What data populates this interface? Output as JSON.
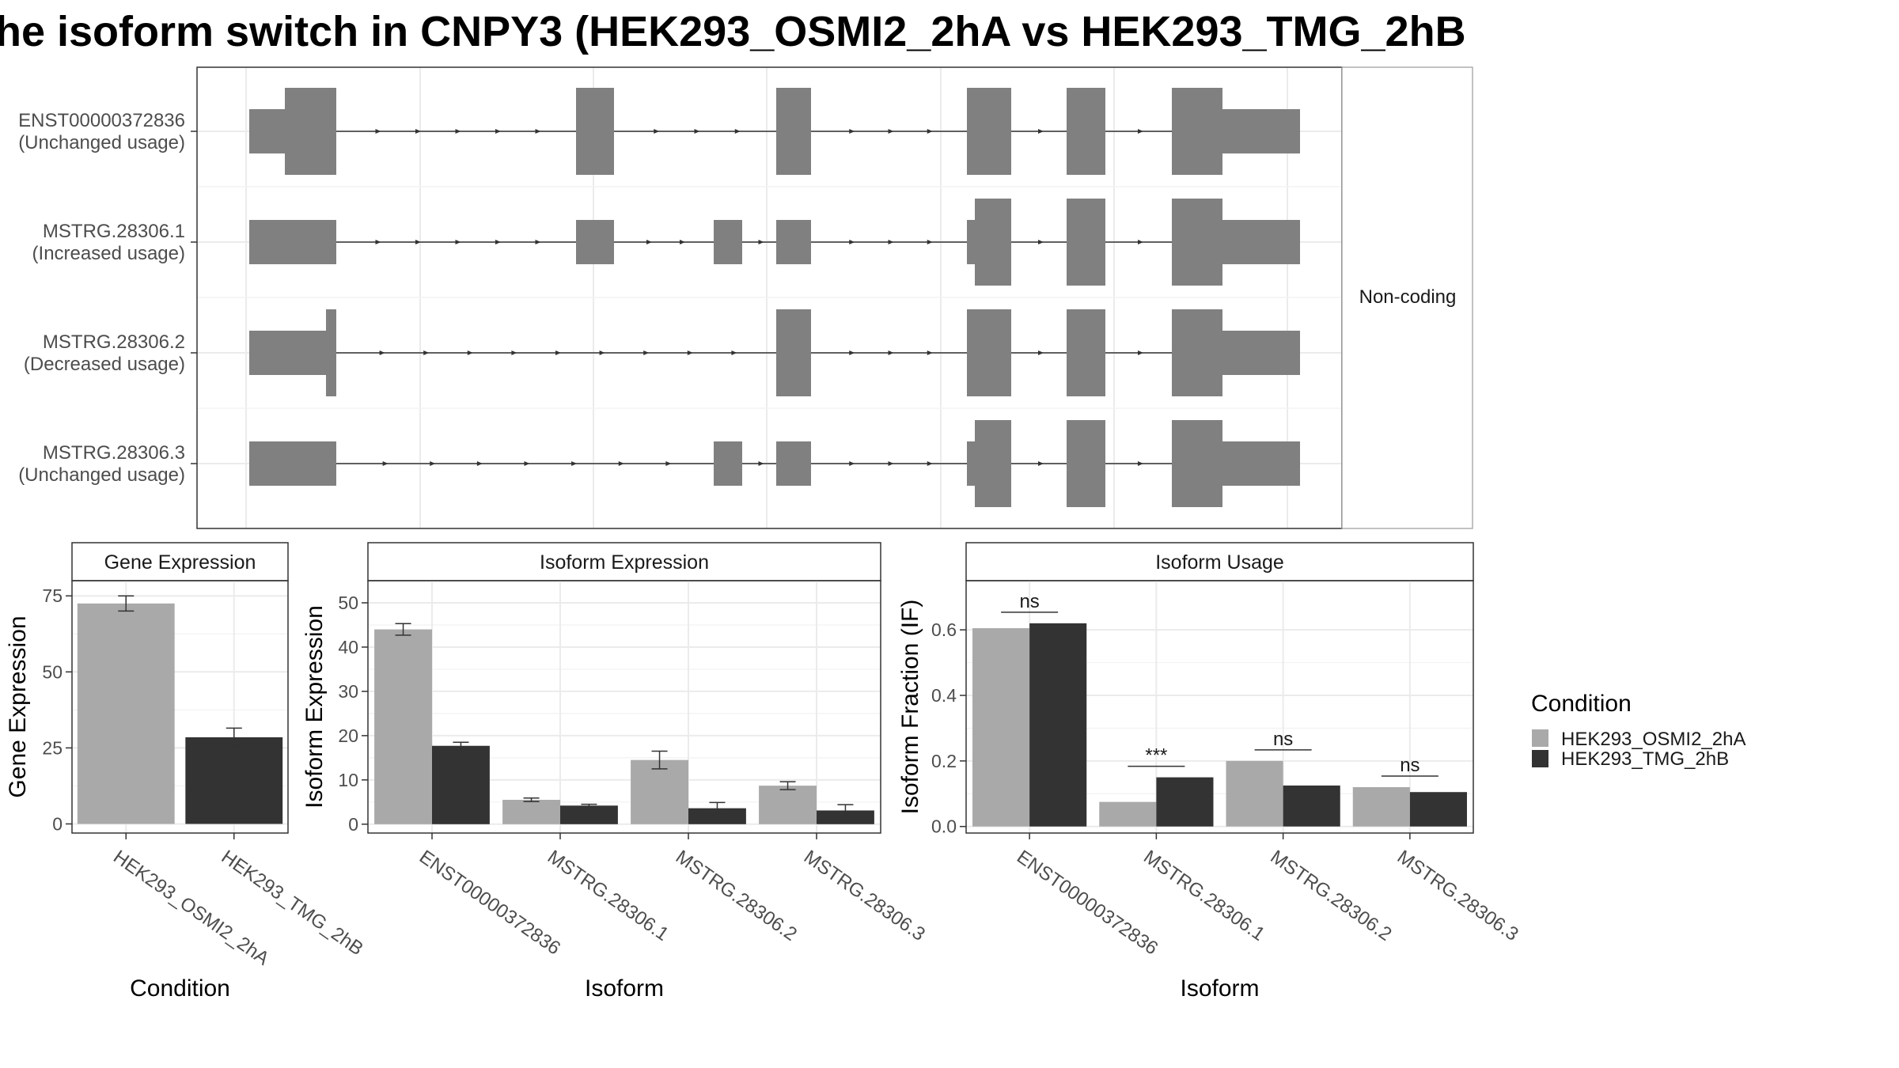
{
  "title": "he isoform switch in CNPY3 (HEK293_OSMI2_2hA vs HEK293_TMG_2hB",
  "colors": {
    "condition_a": "#a9a9a9",
    "condition_b": "#333333",
    "exon": "#808080",
    "grid": "#ebebeb",
    "panel_border": "#333333",
    "strip_fill": "#ffffff"
  },
  "structure": {
    "facet_label": "Non-coding",
    "transcripts": [
      {
        "id": "ENST00000372836",
        "usage": "(Unchanged usage)"
      },
      {
        "id": "MSTRG.28306.1",
        "usage": "(Increased usage)"
      },
      {
        "id": "MSTRG.28306.2",
        "usage": "(Decreased usage)"
      },
      {
        "id": "MSTRG.28306.3",
        "usage": "(Unchanged usage)"
      }
    ]
  },
  "chart_data": [
    {
      "type": "bar",
      "strip_title": "Gene Expression",
      "xlabel": "Condition",
      "ylabel": "Gene Expression",
      "ylim": [
        -3,
        80
      ],
      "yticks": [
        0,
        25,
        50,
        75
      ],
      "categories": [
        "HEK293_OSMI2_2hA",
        "HEK293_TMG_2hB"
      ],
      "values": [
        72.5,
        28.5
      ],
      "errors": [
        2.5,
        3.0
      ]
    },
    {
      "type": "bar",
      "strip_title": "Isoform Expression",
      "xlabel": "Isoform",
      "ylabel": "Isoform Expression",
      "ylim": [
        -2,
        55
      ],
      "yticks": [
        0,
        10,
        20,
        30,
        40,
        50
      ],
      "categories": [
        "ENST00000372836",
        "MSTRG.28306.1",
        "MSTRG.28306.2",
        "MSTRG.28306.3"
      ],
      "series": [
        {
          "name": "HEK293_OSMI2_2hA",
          "values": [
            44.0,
            5.5,
            14.5,
            8.7
          ],
          "errors": [
            1.3,
            0.4,
            2.0,
            0.9
          ]
        },
        {
          "name": "HEK293_TMG_2hB",
          "values": [
            17.7,
            4.2,
            3.6,
            3.1
          ],
          "errors": [
            0.8,
            0.3,
            1.3,
            1.3
          ]
        }
      ]
    },
    {
      "type": "bar",
      "strip_title": "Isoform Usage",
      "xlabel": "Isoform",
      "ylabel": "Isoform Fraction (IF)",
      "ylim": [
        -0.02,
        0.75
      ],
      "yticks": [
        "0.0",
        "0.2",
        "0.4",
        "0.6"
      ],
      "categories": [
        "ENST00000372836",
        "MSTRG.28306.1",
        "MSTRG.28306.2",
        "MSTRG.28306.3"
      ],
      "series": [
        {
          "name": "HEK293_OSMI2_2hA",
          "values": [
            0.605,
            0.075,
            0.2,
            0.12
          ]
        },
        {
          "name": "HEK293_TMG_2hB",
          "values": [
            0.62,
            0.15,
            0.125,
            0.105
          ]
        }
      ],
      "significance": [
        "ns",
        "***",
        "ns",
        "ns"
      ]
    }
  ],
  "legend": {
    "title": "Condition",
    "entries": [
      "HEK293_OSMI2_2hA",
      "HEK293_TMG_2hB"
    ]
  }
}
